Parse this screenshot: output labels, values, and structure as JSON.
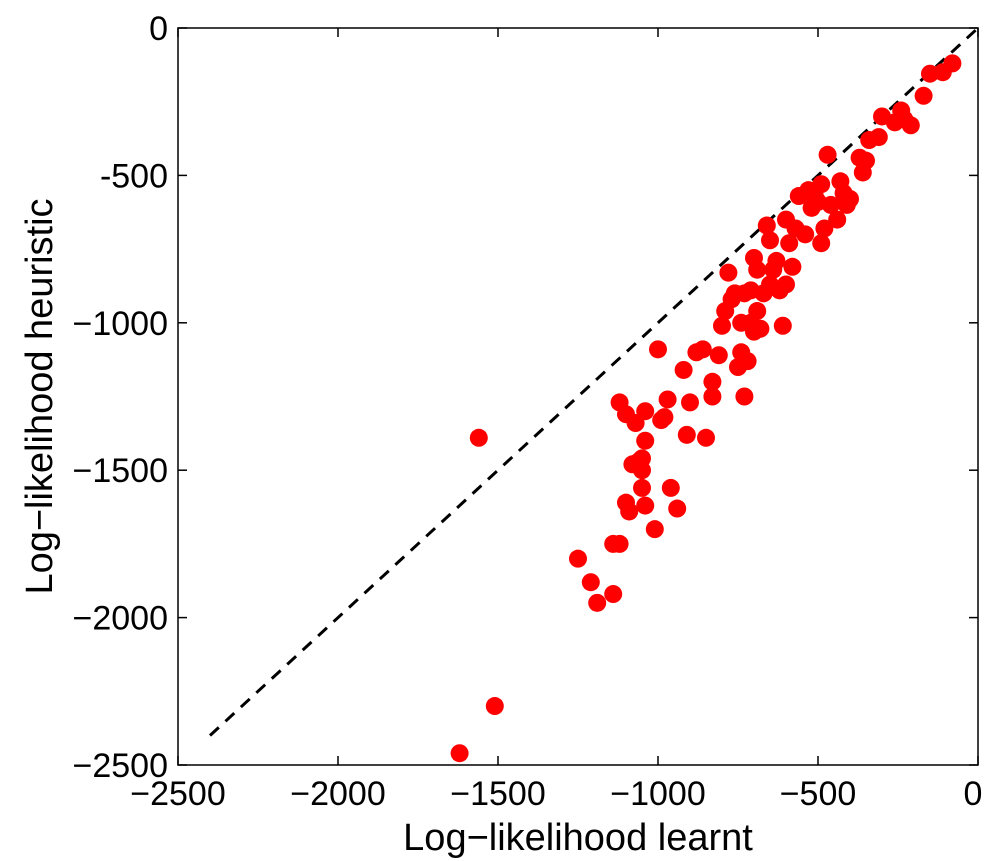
{
  "chart_data": {
    "type": "scatter",
    "title": "",
    "xlabel": "Log−likelihood learnt",
    "ylabel": "Log−likelihood heuristic",
    "xlim": [
      -2500,
      0
    ],
    "ylim": [
      -2500,
      0
    ],
    "x_ticks": [
      -2500,
      -2000,
      -1500,
      -1000,
      -500,
      0
    ],
    "y_ticks": [
      0,
      -500,
      -1000,
      -1500,
      -2000,
      -2500
    ],
    "x_tick_labels": [
      "−2500",
      "−2000",
      "−1500",
      "−1000",
      "−500",
      "0"
    ],
    "y_tick_labels": [
      "0",
      "-500",
      "−1000",
      "−1500",
      "−2000",
      "−2500"
    ],
    "grid": false,
    "marker_color": "#ff0000",
    "reference_line": {
      "style": "dashed",
      "color": "#000000",
      "from": [
        -2400,
        -2400
      ],
      "to": [
        0,
        0
      ]
    },
    "points": [
      [
        -80,
        -120
      ],
      [
        -110,
        -150
      ],
      [
        -150,
        -155
      ],
      [
        -170,
        -230
      ],
      [
        -210,
        -330
      ],
      [
        -230,
        -310
      ],
      [
        -240,
        -280
      ],
      [
        -260,
        -320
      ],
      [
        -300,
        -300
      ],
      [
        -310,
        -370
      ],
      [
        -340,
        -380
      ],
      [
        -350,
        -450
      ],
      [
        -360,
        -490
      ],
      [
        -370,
        -440
      ],
      [
        -400,
        -580
      ],
      [
        -410,
        -600
      ],
      [
        -420,
        -560
      ],
      [
        -430,
        -520
      ],
      [
        -440,
        -650
      ],
      [
        -460,
        -600
      ],
      [
        -470,
        -430
      ],
      [
        -480,
        -680
      ],
      [
        -490,
        -530
      ],
      [
        -490,
        -730
      ],
      [
        -500,
        -590
      ],
      [
        -510,
        -570
      ],
      [
        -520,
        -610
      ],
      [
        -530,
        -550
      ],
      [
        -540,
        -700
      ],
      [
        -560,
        -570
      ],
      [
        -570,
        -680
      ],
      [
        -580,
        -810
      ],
      [
        -590,
        -730
      ],
      [
        -600,
        -650
      ],
      [
        -600,
        -870
      ],
      [
        -610,
        -1010
      ],
      [
        -620,
        -890
      ],
      [
        -630,
        -790
      ],
      [
        -640,
        -820
      ],
      [
        -650,
        -720
      ],
      [
        -650,
        -870
      ],
      [
        -660,
        -670
      ],
      [
        -670,
        -900
      ],
      [
        -680,
        -1020
      ],
      [
        -690,
        -820
      ],
      [
        -690,
        -960
      ],
      [
        -700,
        -1030
      ],
      [
        -700,
        -780
      ],
      [
        -710,
        -890
      ],
      [
        -710,
        -1000
      ],
      [
        -720,
        -1130
      ],
      [
        -730,
        -900
      ],
      [
        -730,
        -1250
      ],
      [
        -740,
        -1100
      ],
      [
        -740,
        -1000
      ],
      [
        -750,
        -1150
      ],
      [
        -760,
        -900
      ],
      [
        -770,
        -920
      ],
      [
        -780,
        -830
      ],
      [
        -790,
        -960
      ],
      [
        -800,
        -1010
      ],
      [
        -810,
        -1110
      ],
      [
        -830,
        -1200
      ],
      [
        -830,
        -1250
      ],
      [
        -850,
        -1390
      ],
      [
        -860,
        -1090
      ],
      [
        -880,
        -1100
      ],
      [
        -900,
        -1270
      ],
      [
        -910,
        -1380
      ],
      [
        -920,
        -1160
      ],
      [
        -940,
        -1630
      ],
      [
        -960,
        -1560
      ],
      [
        -970,
        -1260
      ],
      [
        -980,
        -1320
      ],
      [
        -990,
        -1330
      ],
      [
        -1000,
        -1090
      ],
      [
        -1010,
        -1700
      ],
      [
        -1040,
        -1620
      ],
      [
        -1040,
        -1300
      ],
      [
        -1040,
        -1400
      ],
      [
        -1050,
        -1460
      ],
      [
        -1050,
        -1500
      ],
      [
        -1050,
        -1560
      ],
      [
        -1060,
        -1470
      ],
      [
        -1070,
        -1340
      ],
      [
        -1080,
        -1480
      ],
      [
        -1090,
        -1640
      ],
      [
        -1100,
        -1610
      ],
      [
        -1100,
        -1310
      ],
      [
        -1120,
        -1270
      ],
      [
        -1120,
        -1750
      ],
      [
        -1140,
        -1750
      ],
      [
        -1140,
        -1920
      ],
      [
        -1190,
        -1950
      ],
      [
        -1210,
        -1880
      ],
      [
        -1250,
        -1800
      ],
      [
        -1510,
        -2300
      ],
      [
        -1560,
        -1390
      ],
      [
        -1620,
        -2460
      ]
    ]
  }
}
